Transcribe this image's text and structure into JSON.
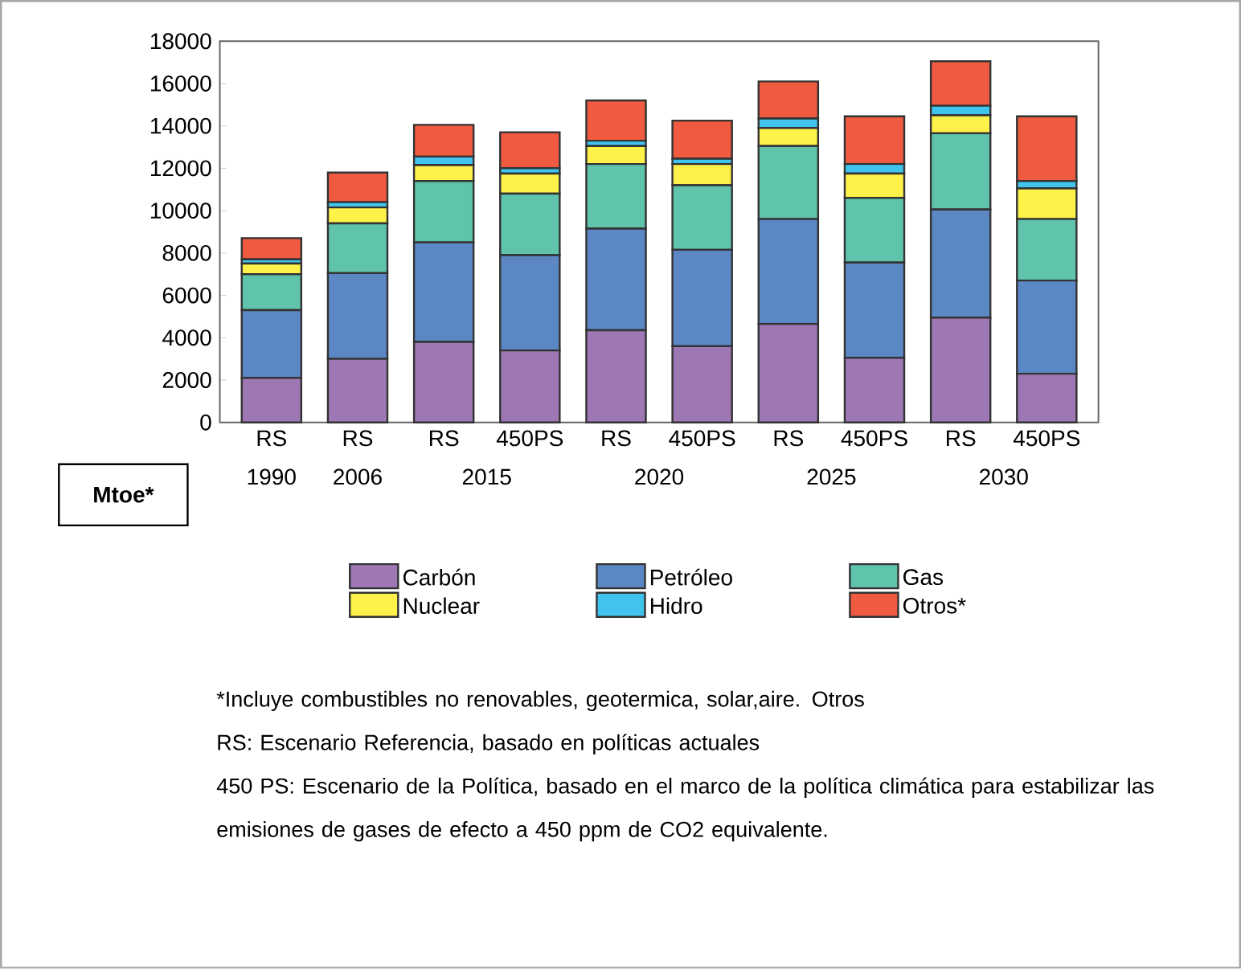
{
  "chart_data": {
    "type": "bar",
    "stacked": true,
    "legend": "bottom",
    "categories": [
      "RS",
      "RS",
      "RS",
      "450PS",
      "RS",
      "450PS",
      "RS",
      "450PS",
      "RS",
      "450PS"
    ],
    "ylim": [
      0,
      18000
    ],
    "yticks": [
      0,
      2000,
      4000,
      6000,
      8000,
      10000,
      12000,
      14000,
      16000,
      18000
    ],
    "series": [
      {
        "name": "Carbón",
        "color": "#9e78b4",
        "values": [
          2100,
          3000,
          3800,
          3400,
          4350,
          3600,
          4650,
          3050,
          4950,
          2300
        ]
      },
      {
        "name": "Petróleo",
        "color": "#5b87c5",
        "values": [
          3200,
          4050,
          4700,
          4500,
          4800,
          4550,
          4950,
          4500,
          5100,
          4400
        ]
      },
      {
        "name": "Gas",
        "color": "#5fc4ab",
        "values": [
          1700,
          2350,
          2900,
          2900,
          3050,
          3050,
          3450,
          3050,
          3600,
          2900
        ]
      },
      {
        "name": "Nuclear",
        "color": "#fef14a",
        "values": [
          500,
          750,
          750,
          950,
          850,
          1000,
          850,
          1150,
          850,
          1450
        ]
      },
      {
        "name": "Hidro",
        "color": "#40c4ee",
        "values": [
          200,
          250,
          400,
          250,
          250,
          250,
          450,
          450,
          450,
          350
        ]
      },
      {
        "name": "Otros*",
        "color": "#f05a40",
        "values": [
          1000,
          1400,
          1500,
          1700,
          1900,
          1800,
          1750,
          2250,
          2100,
          3050
        ]
      }
    ],
    "annotations": [
      "1990",
      "2006",
      "2015",
      "2020",
      "2025",
      "2030",
      "Mtoe*",
      "*Incluye combustibles no renovables, geotermica, solar,aire. Otros",
      "RS: Escenario Referencia, basado en políticas actuales",
      "450 PS: Escenario de la Política, basado en el marco de la política climática para estabilizar las emisiones de gases de efecto a 450 ppm de CO2 equivalente."
    ]
  }
}
